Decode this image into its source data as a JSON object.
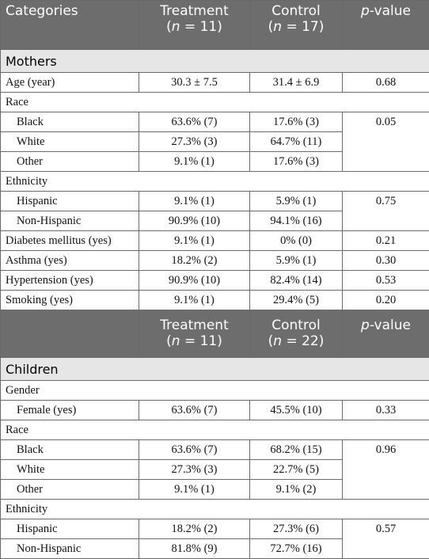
{
  "tables": [
    {
      "header": {
        "categories": "Categories",
        "treatment": [
          "Treatment",
          "(",
          "n",
          " = 11)"
        ],
        "control": [
          "Control",
          "(",
          "n",
          " = 17)"
        ],
        "p_value": [
          "p",
          "-value"
        ]
      },
      "section": "Mothers",
      "rows": [
        [
          "Age (year)",
          "30.3 ± 7.5",
          "31.4 ± 6.9",
          "0.68"
        ],
        [
          "Race"
        ],
        [
          "Black",
          "63.6% (7)",
          "17.6% (3)",
          "0.05"
        ],
        [
          "White",
          "27.3% (3)",
          "64.7% (11)"
        ],
        [
          "Other",
          "9.1% (1)",
          "17.6% (3)"
        ],
        [
          "Ethnicity"
        ],
        [
          "Hispanic",
          "9.1% (1)",
          "5.9% (1)",
          "0.75"
        ],
        [
          "Non-Hispanic",
          "90.9% (10)",
          "94.1% (16)"
        ],
        [
          "Diabetes mellitus (yes)",
          "9.1% (1)",
          "0% (0)",
          "0.21"
        ],
        [
          "Asthma (yes)",
          "18.2% (2)",
          "5.9% (1)",
          "0.30"
        ],
        [
          "Hypertension (yes)",
          "90.9% (10)",
          "82.4% (14)",
          "0.53"
        ],
        [
          "Smoking (yes)",
          "9.1% (1)",
          "29.4% (5)",
          "0.20"
        ]
      ]
    },
    {
      "header": {
        "treatment": [
          "Treatment",
          "(",
          "n",
          " = 11)"
        ],
        "control": [
          "Control",
          "(",
          "n",
          " = 22)"
        ],
        "p_value": [
          "p",
          "-value"
        ]
      },
      "section": "Children",
      "rows": [
        [
          "Gender"
        ],
        [
          "Female (yes)",
          "63.6% (7)",
          "45.5% (10)",
          "0.33"
        ],
        [
          "Race"
        ],
        [
          "Black",
          "63.6% (7)",
          "68.2% (15)",
          "0.96"
        ],
        [
          "White",
          "27.3% (3)",
          "22.7% (5)"
        ],
        [
          "Other",
          "9.1% (1)",
          "9.1% (2)"
        ],
        [
          "Ethnicity"
        ],
        [
          "Hispanic",
          "18.2% (2)",
          "27.3% (6)",
          "0.57"
        ],
        [
          "Non-Hispanic",
          "81.8% (9)",
          "72.7% (16)"
        ]
      ]
    }
  ]
}
